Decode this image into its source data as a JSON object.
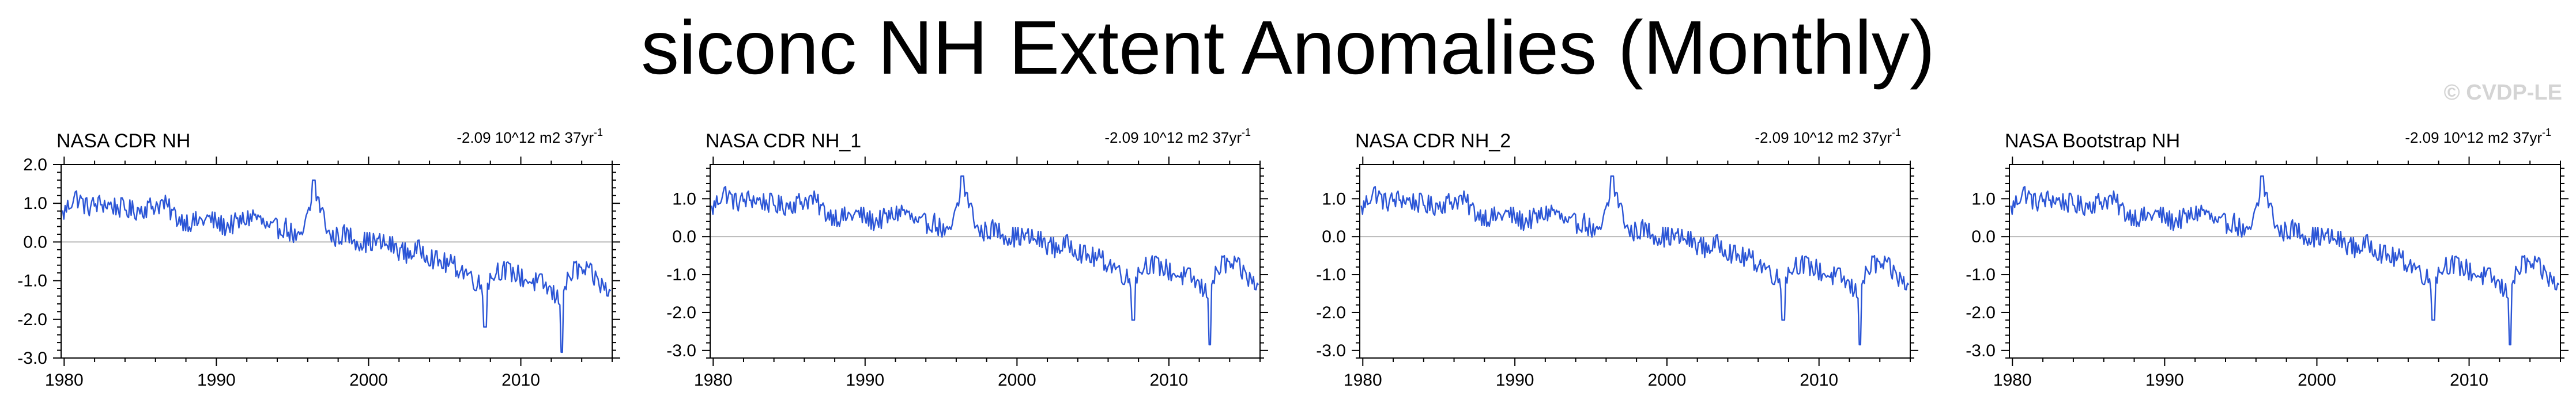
{
  "figure": {
    "title": "siconc NH Extent Anomalies (Monthly)",
    "watermark": "© CVDP-LE",
    "line_color": "#2b55d6"
  },
  "chart_data": [
    {
      "type": "line",
      "title": "NASA CDR NH",
      "annotation": "-2.09 10^12 m2 37yr",
      "annotation_sup": "-1",
      "xlabel": "",
      "ylabel": "",
      "xlim": [
        1979.8,
        2016.0
      ],
      "ylim": [
        -3.0,
        2.0
      ],
      "xticks": [
        1980,
        1990,
        2000,
        2010
      ],
      "yticks": [
        -3.0,
        -2.0,
        -1.0,
        0.0,
        1.0,
        2.0
      ],
      "ytick_labels": [
        "-3.0",
        "-2.0",
        "-1.0",
        "0.0",
        "1.0",
        "2.0"
      ],
      "series": [
        {
          "name": "NASA CDR NH",
          "x": [
            1979.9,
            1980.7,
            1981.5,
            1982.5,
            1983.5,
            1984.5,
            1985.5,
            1986.5,
            1987.5,
            1988.5,
            1989.5,
            1990.5,
            1991.5,
            1992.5,
            1993.5,
            1994.5,
            1995.5,
            1996.5,
            1997.5,
            1998.5,
            1999.5,
            2000.5,
            2001.5,
            2002.5,
            2003.5,
            2004.5,
            2005.5,
            2006.5,
            2007.5,
            2008.5,
            2009.5,
            2010.5,
            2011.5,
            2012.5,
            2013.5,
            2014.5,
            2015.5,
            2015.9
          ],
          "values": [
            0.7,
            1.2,
            0.9,
            1.0,
            0.9,
            0.8,
            0.9,
            1.0,
            0.6,
            0.5,
            0.6,
            0.4,
            0.5,
            0.7,
            0.3,
            0.4,
            0.0,
            1.3,
            0.1,
            0.2,
            0.0,
            0.0,
            -0.1,
            -0.3,
            -0.2,
            -0.5,
            -0.6,
            -0.8,
            -1.2,
            -0.7,
            -0.8,
            -1.0,
            -1.1,
            -1.5,
            -0.7,
            -0.8,
            -1.2,
            -1.3
          ]
        }
      ]
    },
    {
      "type": "line",
      "title": "NASA CDR NH_1",
      "annotation": "-2.09 10^12 m2 37yr",
      "annotation_sup": "-1",
      "xlabel": "",
      "ylabel": "",
      "xlim": [
        1979.8,
        2016.0
      ],
      "ylim": [
        -3.2,
        1.9
      ],
      "xticks": [
        1980,
        1990,
        2000,
        2010
      ],
      "yticks": [
        -3.0,
        -2.0,
        -1.0,
        0.0,
        1.0
      ],
      "ytick_labels": [
        "-3.0",
        "-2.0",
        "-1.0",
        "0.0",
        "1.0"
      ],
      "series": [
        {
          "name": "NASA CDR NH_1",
          "x": [
            1979.9,
            1980.7,
            1981.5,
            1982.5,
            1983.5,
            1984.5,
            1985.5,
            1986.5,
            1987.5,
            1988.5,
            1989.5,
            1990.5,
            1991.5,
            1992.5,
            1993.5,
            1994.5,
            1995.5,
            1996.5,
            1997.5,
            1998.5,
            1999.5,
            2000.5,
            2001.5,
            2002.5,
            2003.5,
            2004.5,
            2005.5,
            2006.5,
            2007.5,
            2008.5,
            2009.5,
            2010.5,
            2011.5,
            2012.5,
            2013.5,
            2014.5,
            2015.5,
            2015.9
          ],
          "values": [
            0.7,
            1.2,
            0.9,
            1.0,
            0.9,
            0.8,
            0.9,
            1.0,
            0.6,
            0.5,
            0.6,
            0.4,
            0.5,
            0.7,
            0.3,
            0.4,
            0.0,
            1.3,
            0.1,
            0.2,
            0.0,
            0.0,
            -0.1,
            -0.3,
            -0.2,
            -0.5,
            -0.6,
            -0.8,
            -1.2,
            -0.7,
            -0.8,
            -1.0,
            -1.1,
            -1.5,
            -0.7,
            -0.8,
            -1.2,
            -1.3
          ]
        }
      ]
    },
    {
      "type": "line",
      "title": "NASA CDR NH_2",
      "annotation": "-2.09 10^12 m2 37yr",
      "annotation_sup": "-1",
      "xlabel": "",
      "ylabel": "",
      "xlim": [
        1979.8,
        2016.0
      ],
      "ylim": [
        -3.2,
        1.9
      ],
      "xticks": [
        1980,
        1990,
        2000,
        2010
      ],
      "yticks": [
        -3.0,
        -2.0,
        -1.0,
        0.0,
        1.0
      ],
      "ytick_labels": [
        "-3.0",
        "-2.0",
        "-1.0",
        "0.0",
        "1.0"
      ],
      "series": [
        {
          "name": "NASA CDR NH_2",
          "x": [
            1979.9,
            1980.7,
            1981.5,
            1982.5,
            1983.5,
            1984.5,
            1985.5,
            1986.5,
            1987.5,
            1988.5,
            1989.5,
            1990.5,
            1991.5,
            1992.5,
            1993.5,
            1994.5,
            1995.5,
            1996.5,
            1997.5,
            1998.5,
            1999.5,
            2000.5,
            2001.5,
            2002.5,
            2003.5,
            2004.5,
            2005.5,
            2006.5,
            2007.5,
            2008.5,
            2009.5,
            2010.5,
            2011.5,
            2012.5,
            2013.5,
            2014.5,
            2015.5,
            2015.9
          ],
          "values": [
            0.7,
            1.2,
            0.9,
            1.0,
            0.9,
            0.8,
            0.9,
            1.0,
            0.6,
            0.5,
            0.6,
            0.4,
            0.5,
            0.7,
            0.3,
            0.4,
            0.0,
            1.3,
            0.1,
            0.2,
            0.0,
            0.0,
            -0.1,
            -0.3,
            -0.2,
            -0.5,
            -0.6,
            -0.8,
            -1.2,
            -0.7,
            -0.8,
            -1.0,
            -1.1,
            -1.5,
            -0.7,
            -0.8,
            -1.2,
            -1.3
          ]
        }
      ]
    },
    {
      "type": "line",
      "title": "NASA Bootstrap NH",
      "annotation": "-2.09 10^12 m2 37yr",
      "annotation_sup": "-1",
      "xlabel": "",
      "ylabel": "",
      "xlim": [
        1979.8,
        2016.0
      ],
      "ylim": [
        -3.2,
        1.9
      ],
      "xticks": [
        1980,
        1990,
        2000,
        2010
      ],
      "yticks": [
        -3.0,
        -2.0,
        -1.0,
        0.0,
        1.0
      ],
      "ytick_labels": [
        "-3.0",
        "-2.0",
        "-1.0",
        "0.0",
        "1.0"
      ],
      "series": [
        {
          "name": "NASA Bootstrap NH",
          "x": [
            1979.9,
            1980.7,
            1981.5,
            1982.5,
            1983.5,
            1984.5,
            1985.5,
            1986.5,
            1987.5,
            1988.5,
            1989.5,
            1990.5,
            1991.5,
            1992.5,
            1993.5,
            1994.5,
            1995.5,
            1996.5,
            1997.5,
            1998.5,
            1999.5,
            2000.5,
            2001.5,
            2002.5,
            2003.5,
            2004.5,
            2005.5,
            2006.5,
            2007.5,
            2008.5,
            2009.5,
            2010.5,
            2011.5,
            2012.5,
            2013.5,
            2014.5,
            2015.5,
            2015.9
          ],
          "values": [
            0.7,
            1.2,
            0.9,
            1.0,
            0.9,
            0.8,
            0.9,
            1.0,
            0.6,
            0.5,
            0.6,
            0.4,
            0.5,
            0.7,
            0.3,
            0.4,
            0.0,
            1.3,
            0.1,
            0.2,
            0.0,
            0.0,
            -0.1,
            -0.3,
            -0.2,
            -0.5,
            -0.6,
            -0.8,
            -1.2,
            -0.7,
            -0.8,
            -1.0,
            -1.1,
            -1.5,
            -0.7,
            -0.8,
            -1.2,
            -1.3
          ]
        }
      ]
    }
  ]
}
